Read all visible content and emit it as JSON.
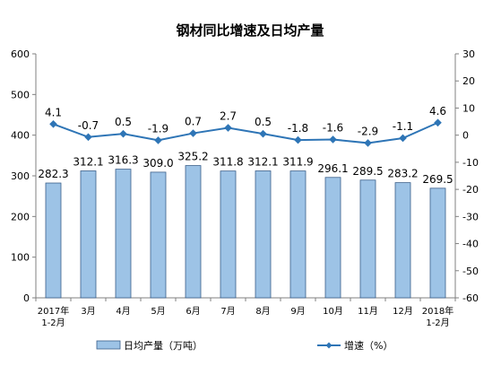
{
  "chart_data": {
    "type": "bar+line",
    "title": "钢材同比增速及日均产量",
    "categories": [
      [
        "2017年",
        "1-2月"
      ],
      [
        "3月"
      ],
      [
        "4月"
      ],
      [
        "5月"
      ],
      [
        "6月"
      ],
      [
        "7月"
      ],
      [
        "8月"
      ],
      [
        "9月"
      ],
      [
        "10月"
      ],
      [
        "11月"
      ],
      [
        "12月"
      ],
      [
        "2018年",
        "1-2月"
      ]
    ],
    "series": [
      {
        "name": "日均产量（万吨）",
        "kind": "bar",
        "axis": "left",
        "color": "#9DC3E6",
        "values": [
          282.3,
          312.1,
          316.3,
          309.0,
          325.2,
          311.8,
          312.1,
          311.9,
          296.1,
          289.5,
          283.2,
          269.5
        ],
        "labels": [
          "282.3",
          "312.1",
          "316.3",
          "309.0",
          "325.2",
          "311.8",
          "312.1",
          "311.9",
          "296.1",
          "289.5",
          "283.2",
          "269.5"
        ]
      },
      {
        "name": "增速（%）",
        "kind": "line",
        "axis": "right",
        "color": "#2E75B6",
        "values": [
          4.1,
          -0.7,
          0.5,
          -1.9,
          0.7,
          2.7,
          0.5,
          -1.8,
          -1.6,
          -2.9,
          -1.1,
          4.6
        ],
        "labels": [
          "4.1",
          "-0.7",
          "0.5",
          "-1.9",
          "0.7",
          "2.7",
          "0.5",
          "-1.8",
          "-1.6",
          "-2.9",
          "-1.1",
          "4.6"
        ]
      }
    ],
    "yleft": {
      "lim": [
        0,
        600
      ],
      "ticks": [
        0,
        100,
        200,
        300,
        400,
        500,
        600
      ]
    },
    "yright": {
      "lim": [
        -60,
        30
      ],
      "ticks": [
        -60,
        -50,
        -40,
        -30,
        -20,
        -10,
        0,
        10,
        20,
        30
      ]
    },
    "legend": {
      "position": "bottom"
    },
    "grid": false
  }
}
